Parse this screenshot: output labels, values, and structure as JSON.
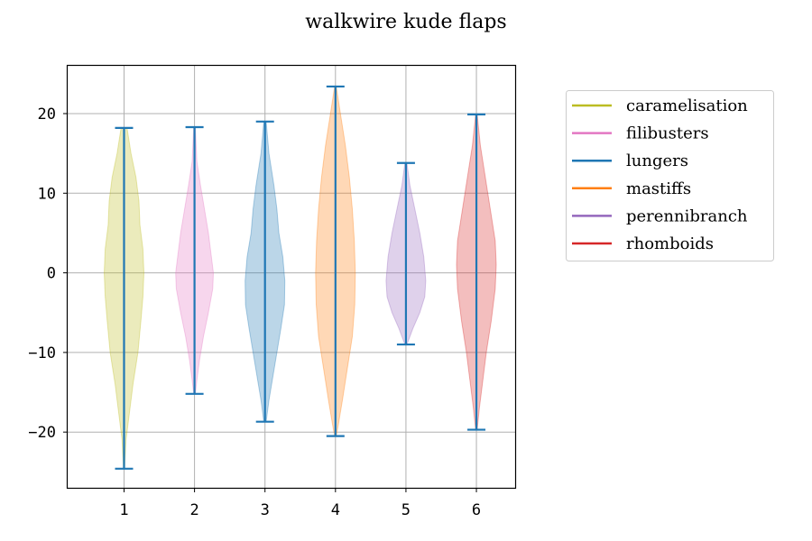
{
  "chart_data": {
    "type": "violin",
    "title": "walkwire kude flaps",
    "xlabel": "",
    "ylabel": "",
    "positions": [
      1,
      2,
      3,
      4,
      5,
      6
    ],
    "x_tick_labels": [
      "1",
      "2",
      "3",
      "4",
      "5",
      "6"
    ],
    "y_ticks": [
      20,
      10,
      0,
      -10,
      -20
    ],
    "y_tick_labels": [
      "20",
      "10",
      "0",
      "−10",
      "−20"
    ],
    "xlim": [
      0.2,
      6.55
    ],
    "ylim": [
      -27,
      26
    ],
    "grid": true,
    "extrema_line_color": "#1f77b4",
    "legend": {
      "placement": "outside-right"
    },
    "series": [
      {
        "name": "caramelisation",
        "color": "#bcbd22",
        "position": 1,
        "min": -24.6,
        "max": 18.2,
        "density": [
          [
            18.2,
            0.15
          ],
          [
            15,
            0.35
          ],
          [
            12,
            0.6
          ],
          [
            9,
            0.75
          ],
          [
            6,
            0.8
          ],
          [
            3,
            0.95
          ],
          [
            0,
            1.0
          ],
          [
            -3,
            0.95
          ],
          [
            -6,
            0.85
          ],
          [
            -10,
            0.7
          ],
          [
            -14,
            0.45
          ],
          [
            -18,
            0.25
          ],
          [
            -21,
            0.1
          ],
          [
            -24.6,
            0.03
          ]
        ]
      },
      {
        "name": "filibusters",
        "color": "#e377c2",
        "position": 2,
        "min": -15.2,
        "max": 18.3,
        "density": [
          [
            18.3,
            0.04
          ],
          [
            14,
            0.12
          ],
          [
            11,
            0.3
          ],
          [
            8,
            0.5
          ],
          [
            5,
            0.7
          ],
          [
            2,
            0.85
          ],
          [
            0,
            0.95
          ],
          [
            -2,
            0.92
          ],
          [
            -5,
            0.7
          ],
          [
            -8,
            0.45
          ],
          [
            -11,
            0.25
          ],
          [
            -13.5,
            0.12
          ],
          [
            -15.2,
            0.04
          ]
        ]
      },
      {
        "name": "lungers",
        "color": "#1f77b4",
        "position": 3,
        "min": -18.7,
        "max": 19.0,
        "density": [
          [
            19,
            0.06
          ],
          [
            15,
            0.2
          ],
          [
            11,
            0.45
          ],
          [
            8,
            0.6
          ],
          [
            5,
            0.7
          ],
          [
            2,
            0.9
          ],
          [
            -1,
            1.0
          ],
          [
            -4,
            0.98
          ],
          [
            -7,
            0.8
          ],
          [
            -10,
            0.6
          ],
          [
            -13,
            0.4
          ],
          [
            -16,
            0.2
          ],
          [
            -18.7,
            0.06
          ]
        ]
      },
      {
        "name": "mastiffs",
        "color": "#ff7f0e",
        "position": 4,
        "min": -20.5,
        "max": 23.4,
        "density": [
          [
            23.4,
            0.04
          ],
          [
            20,
            0.25
          ],
          [
            16,
            0.5
          ],
          [
            12,
            0.7
          ],
          [
            8,
            0.85
          ],
          [
            4,
            0.95
          ],
          [
            0,
            1.0
          ],
          [
            -4,
            0.97
          ],
          [
            -8,
            0.85
          ],
          [
            -12,
            0.6
          ],
          [
            -16,
            0.35
          ],
          [
            -19,
            0.15
          ],
          [
            -20.5,
            0.04
          ]
        ]
      },
      {
        "name": "perennibranch",
        "color": "#9467bd",
        "position": 5,
        "min": -9.0,
        "max": 13.8,
        "density": [
          [
            13.8,
            0.05
          ],
          [
            11,
            0.2
          ],
          [
            8,
            0.45
          ],
          [
            5,
            0.7
          ],
          [
            2,
            0.9
          ],
          [
            -1,
            1.0
          ],
          [
            -3,
            0.95
          ],
          [
            -5,
            0.7
          ],
          [
            -7,
            0.35
          ],
          [
            -9,
            0.05
          ]
        ]
      },
      {
        "name": "rhomboids",
        "color": "#d62728",
        "position": 6,
        "min": -19.7,
        "max": 19.9,
        "density": [
          [
            19.9,
            0.04
          ],
          [
            16,
            0.2
          ],
          [
            12,
            0.45
          ],
          [
            8,
            0.7
          ],
          [
            4,
            0.95
          ],
          [
            1,
            1.0
          ],
          [
            -2,
            0.95
          ],
          [
            -6,
            0.75
          ],
          [
            -10,
            0.5
          ],
          [
            -14,
            0.3
          ],
          [
            -17,
            0.15
          ],
          [
            -19.7,
            0.04
          ]
        ]
      }
    ]
  }
}
